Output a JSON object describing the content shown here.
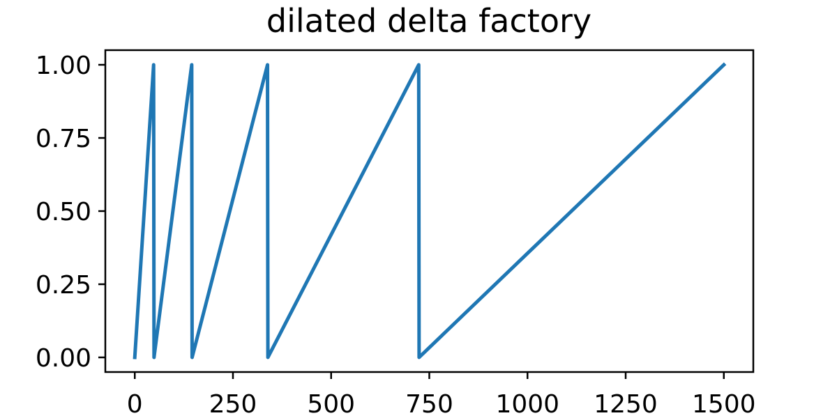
{
  "chart_data": {
    "type": "line",
    "title": "dilated delta factory",
    "xlabel": "",
    "ylabel": "",
    "xlim": [
      -75,
      1575
    ],
    "ylim": [
      -0.05,
      1.05
    ],
    "grid": false,
    "x_ticks": [
      0,
      250,
      500,
      750,
      1000,
      1250,
      1500
    ],
    "x_tick_labels": [
      "0",
      "250",
      "500",
      "750",
      "1000",
      "1250",
      "1500"
    ],
    "y_ticks": [
      0,
      0.25,
      0.5,
      0.75,
      1.0
    ],
    "y_tick_labels": [
      "0.00",
      "0.25",
      "0.50",
      "0.75",
      "1.00"
    ],
    "series": [
      {
        "color": "#1f77b4",
        "x": [
          0,
          48,
          49,
          145,
          146,
          338,
          339,
          723,
          724,
          1500
        ],
        "y": [
          0,
          1.0,
          0,
          1.0,
          0,
          1.0,
          0,
          1.0,
          0,
          1.0
        ]
      }
    ]
  }
}
